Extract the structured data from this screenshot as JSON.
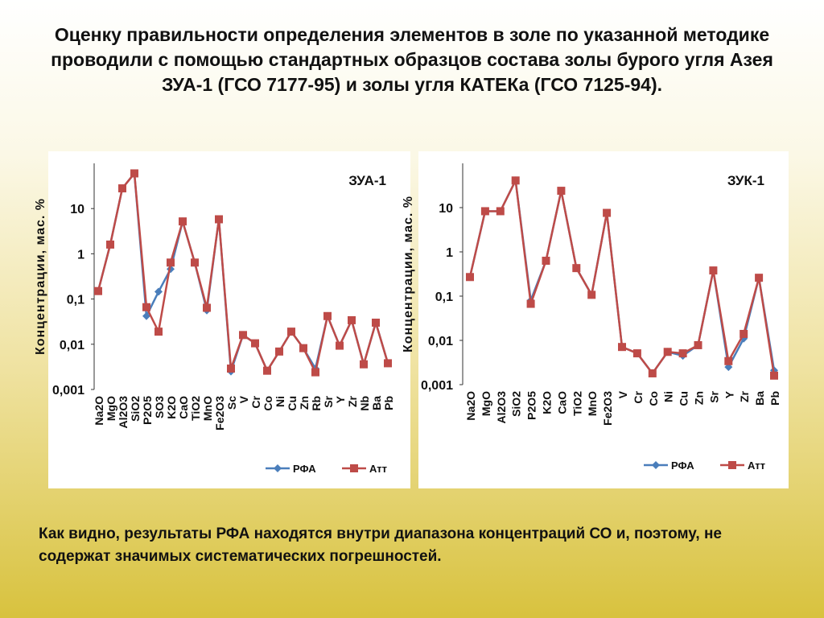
{
  "title": "Оценку правильности определения элементов в золе по указанной методике проводили с помощью стандартных образцов состава золы бурого угля Азея ЗУА-1 (ГСО 7177-95) и золы угля КАТЕКа (ГСО 7125-94).",
  "conclusion": "Как видно, результаты РФА находятся внутри диапазона концентраций СО и, поэтому, не содержат значимых систематических погрешностей.",
  "chart_data": [
    {
      "type": "line",
      "title": "ЗУА-1",
      "ylabel": "Концентрации,  мас. %",
      "log_scale": true,
      "legend": "bottom",
      "categories": [
        "Na2O",
        "MgO",
        "Al2O3",
        "SiO2",
        "P2O5",
        "SO3",
        "K2O",
        "CaO",
        "TiO2",
        "MnO",
        "Fe2O3",
        "Sc",
        "V",
        "Cr",
        "Co",
        "Ni",
        "Cu",
        "Zn",
        "Rb",
        "Sr",
        "Y",
        "Zr",
        "Nb",
        "Ba",
        "Pb"
      ],
      "ylim": [
        0.001,
        100
      ],
      "yticks": [
        {
          "value": 0.001,
          "label": "0,001"
        },
        {
          "value": 0.01,
          "label": "0,01"
        },
        {
          "value": 0.1,
          "label": "0,1"
        },
        1,
        10
      ],
      "series": [
        {
          "name": "РФА",
          "color": "#4a7ebb",
          "marker": "diamond",
          "values": [
            0.15,
            1.6,
            28,
            60,
            0.042,
            0.145,
            0.46,
            5.2,
            0.64,
            0.056,
            5.8,
            0.0025,
            0.016,
            0.0105,
            0.0026,
            0.0069,
            0.019,
            0.0082,
            0.0029,
            0.042,
            0.0093,
            0.034,
            0.0036,
            0.03,
            0.0038
          ]
        },
        {
          "name": "Атт",
          "color": "#be4b48",
          "marker": "square",
          "values": [
            0.15,
            1.6,
            28,
            60,
            0.066,
            0.019,
            0.64,
            5.2,
            0.64,
            0.064,
            5.8,
            0.0029,
            0.016,
            0.0105,
            0.0026,
            0.0069,
            0.019,
            0.0082,
            0.0024,
            0.042,
            0.0093,
            0.034,
            0.0036,
            0.03,
            0.0038
          ]
        }
      ]
    },
    {
      "type": "line",
      "title": "ЗУК-1",
      "ylabel": "Концентрации,  мас. %",
      "log_scale": true,
      "legend": "bottom",
      "categories": [
        "Na2O",
        "MgO",
        "Al2O3",
        "SiO2",
        "P2O5",
        "K2O",
        "CaO",
        "TiO2",
        "MnO",
        "Fe2O3",
        "V",
        "Cr",
        "Co",
        "Ni",
        "Cu",
        "Zn",
        "Sr",
        "Y",
        "Zr",
        "Ba",
        "Pb"
      ],
      "ylim": [
        0.001,
        100
      ],
      "yticks": [
        {
          "value": 0.001,
          "label": "0,001"
        },
        {
          "value": 0.01,
          "label": "0,01"
        },
        {
          "value": 0.1,
          "label": "0,1"
        },
        1,
        10
      ],
      "series": [
        {
          "name": "РФА",
          "color": "#4a7ebb",
          "marker": "diamond",
          "values": [
            0.27,
            8.3,
            8.3,
            41,
            0.08,
            0.63,
            24,
            0.43,
            0.107,
            7.6,
            0.0071,
            0.0051,
            0.0018,
            0.0055,
            0.0045,
            0.0078,
            0.38,
            0.0025,
            0.011,
            0.26,
            0.0021
          ]
        },
        {
          "name": "Атт",
          "color": "#be4b48",
          "marker": "square",
          "values": [
            0.27,
            8.3,
            8.3,
            41,
            0.067,
            0.63,
            24,
            0.43,
            0.107,
            7.6,
            0.0071,
            0.0051,
            0.0018,
            0.0055,
            0.0051,
            0.0078,
            0.38,
            0.0034,
            0.014,
            0.26,
            0.0016
          ]
        }
      ]
    }
  ]
}
